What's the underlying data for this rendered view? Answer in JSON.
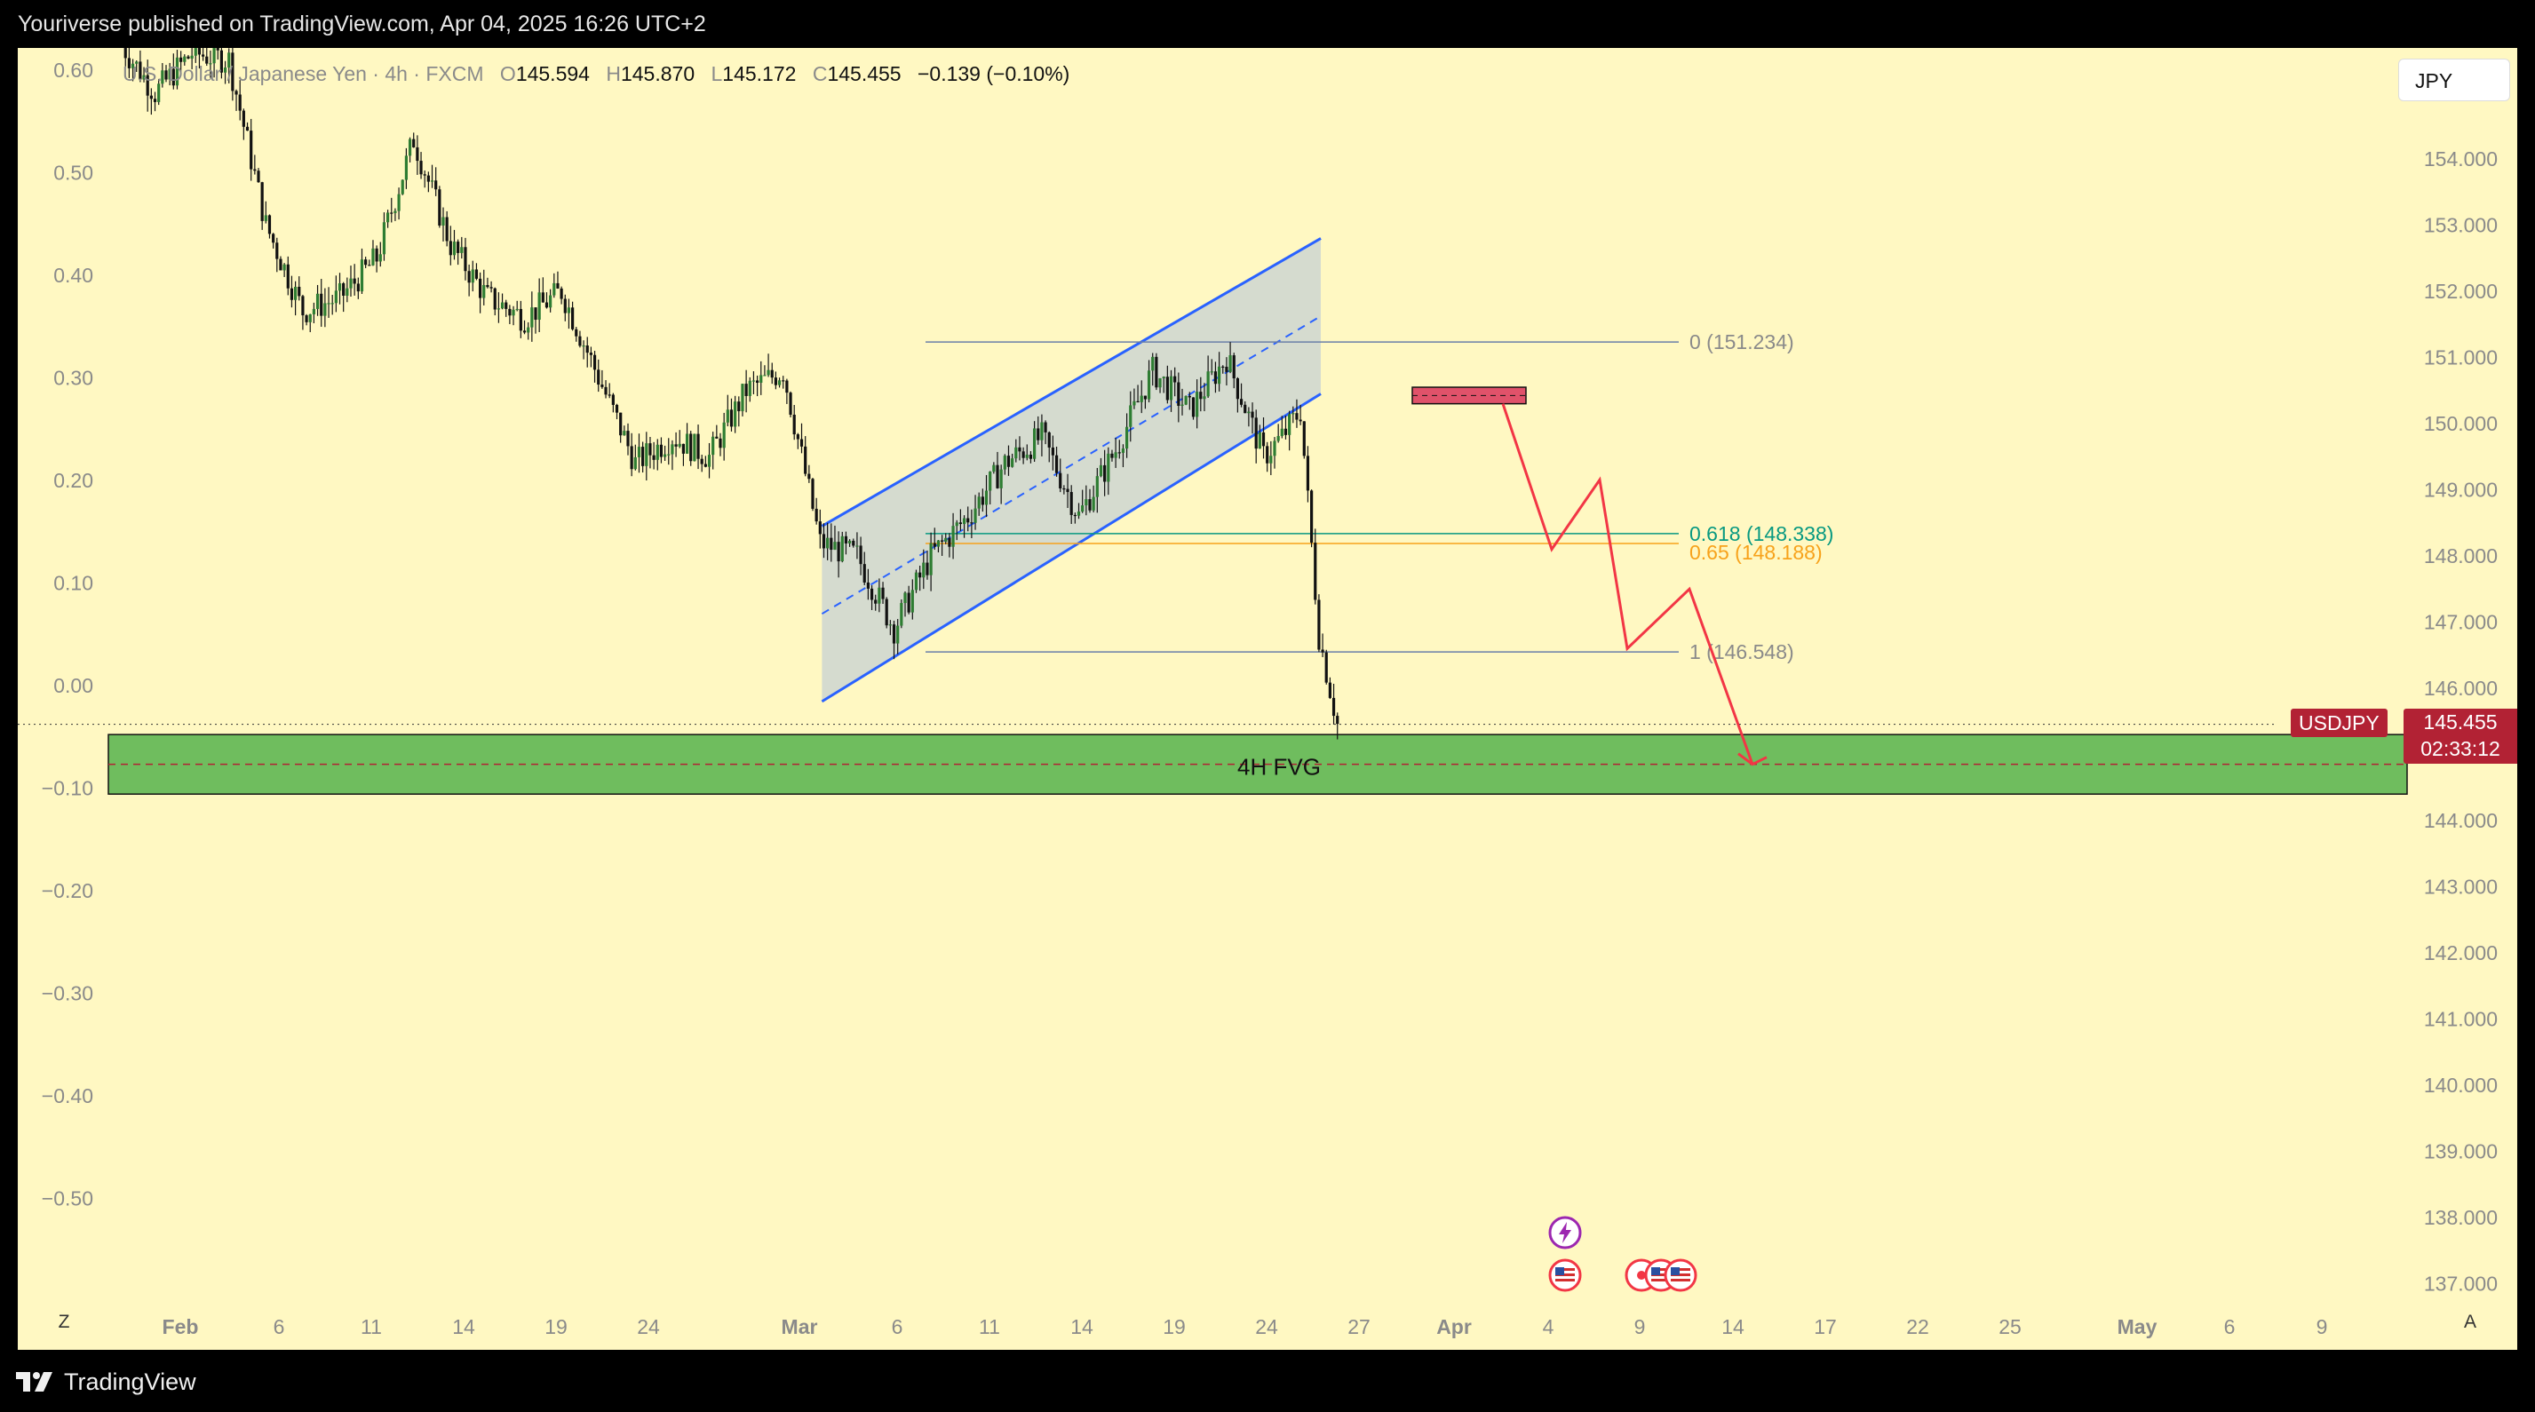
{
  "header": {
    "published_text": "Youriverse published on TradingView.com, Apr 04, 2025 16:26 UTC+2"
  },
  "legend": {
    "symbol": "U.S. Dollar / Japanese Yen · 4h · FXCM",
    "open_label": "O",
    "open": "145.594",
    "high_label": "H",
    "high": "145.870",
    "low_label": "L",
    "low": "145.172",
    "close_label": "C",
    "close": "145.455",
    "change": "−0.139 (−0.10%)"
  },
  "currency_button": "JPY",
  "price_badge": {
    "symbol": "USDJPY",
    "price": "145.455",
    "countdown": "02:33:12"
  },
  "corner_buttons": {
    "left": "Z",
    "right": "A"
  },
  "footer": {
    "brand": "TradingView"
  },
  "colors": {
    "background": "#fff8c2",
    "channel_line": "#2962ff",
    "projection": "#f23645",
    "fvg_fill": "#6fbd5e",
    "fib_618": "#089981",
    "fib_65": "#f7a21b",
    "badge": "#b22234"
  },
  "icons": [
    "tradingview-logo-icon",
    "lightning-event-icon",
    "us-flag-event-icon",
    "earnings-event-icon"
  ],
  "chart_data": {
    "type": "candlestick",
    "timeframe": "4h",
    "right_axis": {
      "ticks": [
        "154.000",
        "153.000",
        "152.000",
        "151.000",
        "150.000",
        "149.000",
        "148.000",
        "147.000",
        "146.000",
        "144.000",
        "143.000",
        "142.000",
        "141.000",
        "140.000",
        "139.000",
        "138.000",
        "137.000"
      ]
    },
    "left_axis": {
      "ticks": [
        "0.60",
        "0.50",
        "0.40",
        "0.30",
        "0.20",
        "0.10",
        "0.00",
        "−0.10",
        "−0.20",
        "−0.30",
        "−0.40",
        "−0.50"
      ]
    },
    "x_ticks": [
      "Feb",
      "6",
      "11",
      "14",
      "19",
      "24",
      "Mar",
      "6",
      "11",
      "14",
      "19",
      "24",
      "27",
      "Apr",
      "4",
      "9",
      "14",
      "17",
      "22",
      "25",
      "May",
      "6",
      "9"
    ],
    "price_path": [
      {
        "date": "2025-01-28",
        "price": 155.8
      },
      {
        "date": "2025-01-30",
        "price": 155.0
      },
      {
        "date": "2025-02-01",
        "price": 155.6
      },
      {
        "date": "2025-02-03",
        "price": 155.5
      },
      {
        "date": "2025-02-05",
        "price": 153.0
      },
      {
        "date": "2025-02-07",
        "price": 151.7
      },
      {
        "date": "2025-02-09",
        "price": 151.9
      },
      {
        "date": "2025-02-11",
        "price": 152.5
      },
      {
        "date": "2025-02-13",
        "price": 154.3
      },
      {
        "date": "2025-02-15",
        "price": 152.7
      },
      {
        "date": "2025-02-17",
        "price": 151.9
      },
      {
        "date": "2025-02-19",
        "price": 151.6
      },
      {
        "date": "2025-02-21",
        "price": 152.0
      },
      {
        "date": "2025-02-23",
        "price": 150.7
      },
      {
        "date": "2025-02-25",
        "price": 149.4
      },
      {
        "date": "2025-02-27",
        "price": 149.8
      },
      {
        "date": "2025-03-01",
        "price": 149.5
      },
      {
        "date": "2025-03-03",
        "price": 150.5
      },
      {
        "date": "2025-03-05",
        "price": 150.8
      },
      {
        "date": "2025-03-07",
        "price": 148.2
      },
      {
        "date": "2025-03-09",
        "price": 148.0
      },
      {
        "date": "2025-03-11",
        "price": 146.9
      },
      {
        "date": "2025-03-13",
        "price": 148.0
      },
      {
        "date": "2025-03-15",
        "price": 148.6
      },
      {
        "date": "2025-03-17",
        "price": 149.4
      },
      {
        "date": "2025-03-19",
        "price": 149.8
      },
      {
        "date": "2025-03-21",
        "price": 148.6
      },
      {
        "date": "2025-03-23",
        "price": 149.6
      },
      {
        "date": "2025-03-25",
        "price": 150.8
      },
      {
        "date": "2025-03-27",
        "price": 150.2
      },
      {
        "date": "2025-03-29",
        "price": 151.0
      },
      {
        "date": "2025-03-31",
        "price": 149.5
      },
      {
        "date": "2025-04-01",
        "price": 149.8
      },
      {
        "date": "2025-04-02",
        "price": 150.2
      },
      {
        "date": "2025-04-03",
        "price": 146.8
      },
      {
        "date": "2025-04-04",
        "price": 145.455
      }
    ],
    "fibonacci": [
      {
        "level": "0",
        "price": 151.234,
        "label": "0 (151.234)"
      },
      {
        "level": "0.618",
        "price": 148.338,
        "label": "0.618 (148.338)"
      },
      {
        "level": "0.65",
        "price": 148.188,
        "label": "0.65 (148.188)"
      },
      {
        "level": "1",
        "price": 146.548,
        "label": "1 (146.548)"
      }
    ],
    "channel": {
      "upper": [
        {
          "date": "2025-03-07",
          "price": 148.45
        },
        {
          "date": "2025-04-03",
          "price": 152.8
        }
      ],
      "lower": [
        {
          "date": "2025-03-07",
          "price": 145.8
        },
        {
          "date": "2025-04-03",
          "price": 150.45
        }
      ]
    },
    "fvg_zone": {
      "label": "4H FVG",
      "top": 145.3,
      "bottom": 144.4,
      "mid": 144.85
    },
    "supply_zone": {
      "top": 150.55,
      "bottom": 150.3
    },
    "projection": [
      {
        "date": "2025-04-02",
        "price": 150.3
      },
      {
        "date": "2025-04-03",
        "price": 148.1
      },
      {
        "date": "2025-04-04",
        "price": 149.15
      },
      {
        "date": "2025-04-05",
        "price": 146.6
      },
      {
        "date": "2025-04-06",
        "price": 147.5
      },
      {
        "date": "2025-04-07",
        "price": 144.85
      }
    ]
  }
}
